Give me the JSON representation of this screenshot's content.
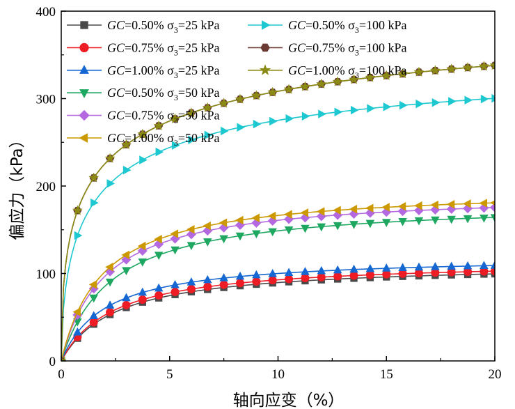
{
  "chart_data": {
    "type": "line",
    "title": "",
    "xlabel": "轴向应变（%）",
    "ylabel": "偏应力（kPa）",
    "xlim": [
      0,
      20
    ],
    "ylim": [
      0,
      400
    ],
    "xticks": [
      0,
      5,
      10,
      15,
      20
    ],
    "yticks": [
      0,
      100,
      200,
      300,
      400
    ],
    "legend_position": "top-left",
    "colors": {
      "axis": "#000000",
      "s1": "#4a4a4a",
      "s2": "#ee1c24",
      "s3": "#1567d2",
      "s4": "#1ea760",
      "s5": "#b469e0",
      "s6": "#cc9900",
      "s7": "#1ec8d0",
      "s8": "#6b3a33",
      "s9": "#8a8a14"
    },
    "series": [
      {
        "name": "GC=0.50% σ3=25 kPa",
        "gc": "0.50%",
        "sigma": "25 kPa",
        "marker": "square",
        "color": "#4a4a4a",
        "a": 112,
        "k": 2.5,
        "n": 1.0
      },
      {
        "name": "GC=0.75% σ3=25 kPa",
        "gc": "0.75%",
        "sigma": "25 kPa",
        "marker": "circle",
        "color": "#ee1c24",
        "a": 115,
        "k": 2.4,
        "n": 1.0
      },
      {
        "name": "GC=1.00% σ3=25 kPa",
        "gc": "1.00%",
        "sigma": "25 kPa",
        "marker": "triangle-up",
        "color": "#1567d2",
        "a": 120,
        "k": 2.0,
        "n": 1.0
      },
      {
        "name": "GC=0.50% σ3=50 kPa",
        "gc": "0.50%",
        "sigma": "50 kPa",
        "marker": "triangle-down",
        "color": "#1ea760",
        "a": 183,
        "k": 2.3,
        "n": 1.0
      },
      {
        "name": "GC=0.75% σ3=50 kPa",
        "gc": "0.75%",
        "sigma": "50 kPa",
        "marker": "diamond",
        "color": "#b469e0",
        "a": 193,
        "k": 2.0,
        "n": 1.0
      },
      {
        "name": "GC=1.00% σ3=50 kPa",
        "gc": "1.00%",
        "sigma": "50 kPa",
        "marker": "triangle-left",
        "color": "#cc9900",
        "a": 198,
        "k": 1.9,
        "n": 1.0
      },
      {
        "name": "GC=0.50% σ3=100 kPa",
        "gc": "0.50%",
        "sigma": "100 kPa",
        "marker": "triangle-right",
        "color": "#1ec8d0",
        "a": 365,
        "k": 1.3,
        "n": 0.6
      },
      {
        "name": "GC=0.75% σ3=100 kPa",
        "gc": "0.75%",
        "sigma": "100 kPa",
        "marker": "hexagon",
        "color": "#6b3a33",
        "a": 440,
        "k": 1.35,
        "n": 0.5
      },
      {
        "name": "GC=1.00% σ3=100 kPa",
        "gc": "1.00%",
        "sigma": "100 kPa",
        "marker": "star",
        "color": "#8a8a14",
        "a": 440,
        "k": 1.35,
        "n": 0.5
      }
    ],
    "x_samples": [
      0,
      0.75,
      1.5,
      2.25,
      3,
      3.75,
      4.5,
      5.25,
      6,
      6.75,
      7.5,
      8.25,
      9,
      9.75,
      10.5,
      11.25,
      12,
      12.75,
      13.5,
      14.25,
      15,
      15.75,
      16.5,
      17.25,
      18,
      18.75,
      19.5,
      20
    ]
  },
  "legend": {
    "gc_symbol": "GC",
    "sigma_symbol": "σ",
    "sigma_sub": "3",
    "items": [
      {
        "gc_value": "=0.50%",
        "sigma_value": "=25 kPa"
      },
      {
        "gc_value": "=0.75%",
        "sigma_value": "=25 kPa"
      },
      {
        "gc_value": "=1.00%",
        "sigma_value": "=25 kPa"
      },
      {
        "gc_value": "=0.50%",
        "sigma_value": "=50 kPa"
      },
      {
        "gc_value": "=0.75%",
        "sigma_value": "=50 kPa"
      },
      {
        "gc_value": "=1.00%",
        "sigma_value": "=50 kPa"
      },
      {
        "gc_value": "=0.50%",
        "sigma_value": "=100 kPa"
      },
      {
        "gc_value": "=0.75%",
        "sigma_value": "=100 kPa"
      },
      {
        "gc_value": "=1.00%",
        "sigma_value": "=100 kPa"
      }
    ]
  }
}
